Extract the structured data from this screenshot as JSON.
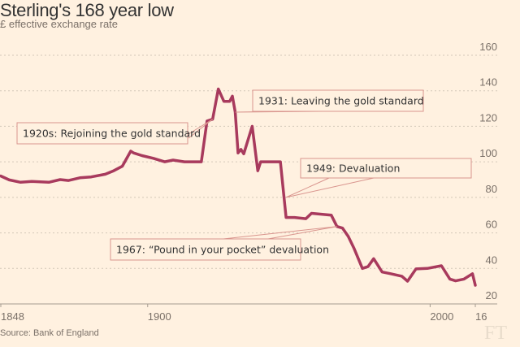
{
  "header": {
    "title": "Sterling's 168 year low",
    "subtitle": "£ effective exchange rate"
  },
  "footer": {
    "source": "Source: Bank of England",
    "logo": "FT"
  },
  "colors": {
    "background": "#fff1e0",
    "line": "#a83a5d",
    "annotation_border": "#d9958e",
    "grid": "#d3c8b8",
    "axis": "#a69c90"
  },
  "chart_data": {
    "type": "line",
    "title": "Sterling's 168 year low",
    "subtitle": "£ effective exchange rate",
    "xlabel": "",
    "ylabel": "",
    "xlim": [
      1848,
      2016
    ],
    "ylim": [
      20,
      160
    ],
    "grid": true,
    "y_axis_side": "right",
    "yticks": [
      20,
      40,
      60,
      80,
      100,
      120,
      140,
      160
    ],
    "xticks": [
      {
        "value": 1848,
        "label": "1848"
      },
      {
        "value": 1900,
        "label": "1900"
      },
      {
        "value": 2000,
        "label": "2000"
      },
      {
        "value": 2016,
        "label": "16"
      }
    ],
    "series": [
      {
        "name": "£ effective exchange rate",
        "x": [
          1848,
          1851,
          1855,
          1859,
          1865,
          1869,
          1872,
          1876,
          1880,
          1885,
          1888,
          1891,
          1894,
          1895,
          1898,
          1902,
          1906,
          1909,
          1913,
          1919,
          1921,
          1923,
          1925,
          1927,
          1929,
          1930,
          1931,
          1932,
          1933,
          1934,
          1937,
          1939,
          1940,
          1947,
          1949,
          1952,
          1956,
          1958,
          1965,
          1967,
          1969,
          1971,
          1973,
          1976,
          1978,
          1980,
          1983,
          1986,
          1990,
          1992,
          1995,
          1999,
          2004,
          2007,
          2009,
          2012,
          2015,
          2016
        ],
        "values": [
          92,
          89.8,
          88.5,
          89,
          88.5,
          90,
          89.5,
          91,
          91.5,
          93,
          95,
          97.5,
          106,
          105,
          103.5,
          102,
          100,
          101,
          100,
          100,
          123,
          124,
          141,
          134,
          134,
          137,
          128,
          105,
          107,
          104.5,
          120,
          95,
          100,
          100,
          68.7,
          68.7,
          68,
          71,
          70,
          63.6,
          62.7,
          58,
          51.5,
          40,
          41,
          45.5,
          38,
          37,
          35.6,
          32.8,
          39.7,
          40,
          41.5,
          34,
          33,
          34,
          37,
          30.5
        ]
      }
    ],
    "annotations": [
      {
        "text": "1920s: Rejoining the gold standard",
        "x": 1923,
        "y": 124
      },
      {
        "text": "1931: Leaving the gold standard",
        "x": 1931,
        "y": 128
      },
      {
        "text": "1949: Devaluation",
        "x": 1949,
        "y": 80
      },
      {
        "text": "1967: “Pound in your pocket” devaluation",
        "x": 1967,
        "y": 63.6
      }
    ]
  }
}
